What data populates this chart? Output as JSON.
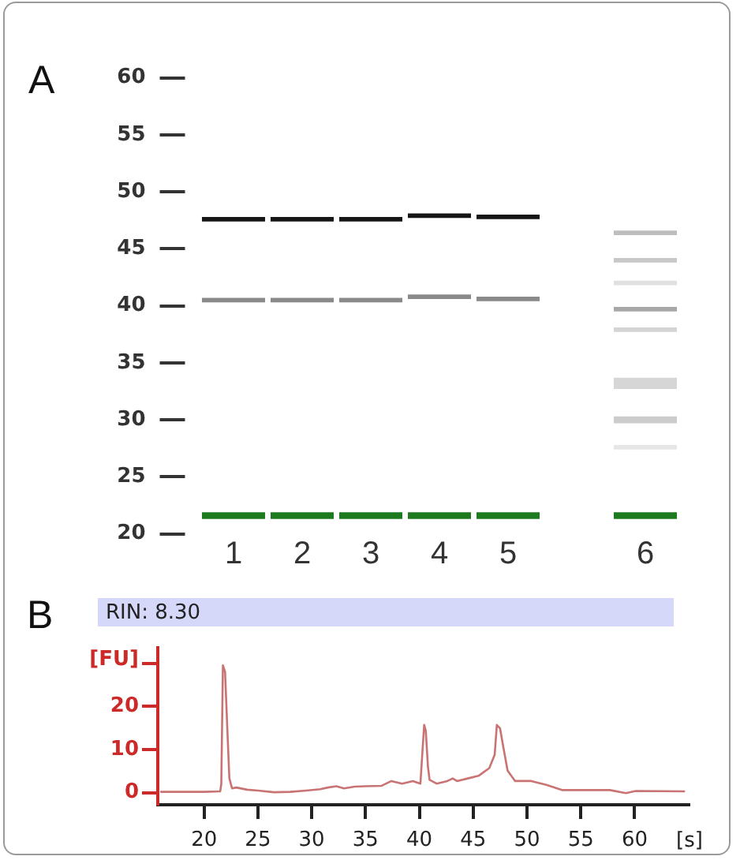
{
  "chart_data": [
    {
      "type": "bar",
      "title": "A",
      "categories": [
        "1",
        "2",
        "3",
        "4",
        "5",
        null,
        "6"
      ],
      "ylim": [
        20,
        60
      ],
      "yticks": [
        20,
        25,
        30,
        35,
        40,
        45,
        50,
        55,
        60
      ],
      "series": [
        {
          "color": "#1e7a1e",
          "base": [
            21.3,
            21.3,
            21.3,
            21.3,
            21.3,
            null,
            21.3
          ],
          "values": [
            0.6,
            0.6,
            0.6,
            0.6,
            0.6,
            null,
            0.6
          ]
        },
        {
          "color": "#161616",
          "base": [
            47.4,
            47.4,
            47.4,
            47.7,
            47.6,
            null,
            null
          ],
          "values": [
            0.4,
            0.4,
            0.4,
            0.4,
            0.4,
            null,
            null
          ]
        },
        {
          "color": "#8a8a8a",
          "base": [
            40.3,
            40.3,
            40.3,
            40.6,
            40.4,
            null,
            null
          ],
          "values": [
            0.4,
            0.4,
            0.4,
            0.4,
            0.4,
            null,
            null
          ]
        },
        {
          "color": "#bdbdbd",
          "base": [
            null,
            null,
            null,
            null,
            null,
            null,
            46.2
          ],
          "values": [
            null,
            null,
            null,
            null,
            null,
            null,
            0.4
          ]
        },
        {
          "color": "#c8c8c8",
          "base": [
            null,
            null,
            null,
            null,
            null,
            null,
            43.8
          ],
          "values": [
            null,
            null,
            null,
            null,
            null,
            null,
            0.4
          ]
        },
        {
          "color": "#e0e0e0",
          "base": [
            null,
            null,
            null,
            null,
            null,
            null,
            41.8
          ],
          "values": [
            null,
            null,
            null,
            null,
            null,
            null,
            0.4
          ]
        },
        {
          "color": "#a8a8a8",
          "base": [
            null,
            null,
            null,
            null,
            null,
            null,
            39.5
          ],
          "values": [
            null,
            null,
            null,
            null,
            null,
            null,
            0.4
          ]
        },
        {
          "color": "#d4d4d4",
          "base": [
            null,
            null,
            null,
            null,
            null,
            null,
            37.7
          ],
          "values": [
            null,
            null,
            null,
            null,
            null,
            null,
            0.4
          ]
        },
        {
          "color": "#d6d6d6",
          "base": [
            null,
            null,
            null,
            null,
            null,
            null,
            32.7
          ],
          "values": [
            null,
            null,
            null,
            null,
            null,
            null,
            1.0
          ]
        },
        {
          "color": "#cccccc",
          "base": [
            null,
            null,
            null,
            null,
            null,
            null,
            29.7
          ],
          "values": [
            null,
            null,
            null,
            null,
            null,
            null,
            0.6
          ]
        },
        {
          "color": "#e6e6e6",
          "base": [
            null,
            null,
            null,
            null,
            null,
            null,
            27.4
          ],
          "values": [
            null,
            null,
            null,
            null,
            null,
            null,
            0.4
          ]
        }
      ]
    },
    {
      "type": "line",
      "title": "B",
      "annotations": [
        "RIN: 8.30"
      ],
      "xlabel": "[s]",
      "ylabel": "[FU]",
      "marker": "none",
      "xlim": [
        15.7,
        65.1
      ],
      "xticks": [
        20,
        25,
        30,
        35,
        40,
        45,
        50,
        55,
        60
      ],
      "ylim": [
        -2.8,
        33.5
      ],
      "yticks": [
        0,
        10,
        20,
        {
          "value": 30,
          "label": null
        }
      ],
      "x": [
        16.0,
        18.0,
        20.0,
        21.5,
        21.6,
        21.75,
        21.95,
        22.15,
        22.35,
        22.6,
        23.0,
        24.0,
        25.0,
        26.5,
        28.0,
        29.5,
        30.8,
        31.5,
        32.3,
        33.0,
        34.0,
        35.0,
        36.5,
        37.4,
        38.4,
        39.4,
        40.1,
        40.3,
        40.45,
        40.6,
        40.8,
        40.95,
        41.6,
        42.6,
        43.1,
        43.5,
        44.5,
        45.5,
        46.5,
        47.0,
        47.2,
        47.5,
        47.8,
        48.2,
        48.9,
        50.4,
        51.8,
        53.3,
        57.7,
        59.2,
        60.1,
        64.6
      ],
      "series": [
        {
          "color": "#c97373",
          "values": [
            0.2,
            0.2,
            0.2,
            0.3,
            2.0,
            29.5,
            28.0,
            15.5,
            3.3,
            1.0,
            1.2,
            0.7,
            0.5,
            0.1,
            0.2,
            0.5,
            0.8,
            1.2,
            1.5,
            1.0,
            1.4,
            1.5,
            1.6,
            2.7,
            2.1,
            2.7,
            2.1,
            10.0,
            15.7,
            14.3,
            6.0,
            3.0,
            2.1,
            2.7,
            3.3,
            2.7,
            3.3,
            3.9,
            5.7,
            8.8,
            15.7,
            14.9,
            10.6,
            5.1,
            2.7,
            2.7,
            1.8,
            0.6,
            0.6,
            -0.1,
            0.4,
            0.3
          ]
        }
      ]
    }
  ]
}
